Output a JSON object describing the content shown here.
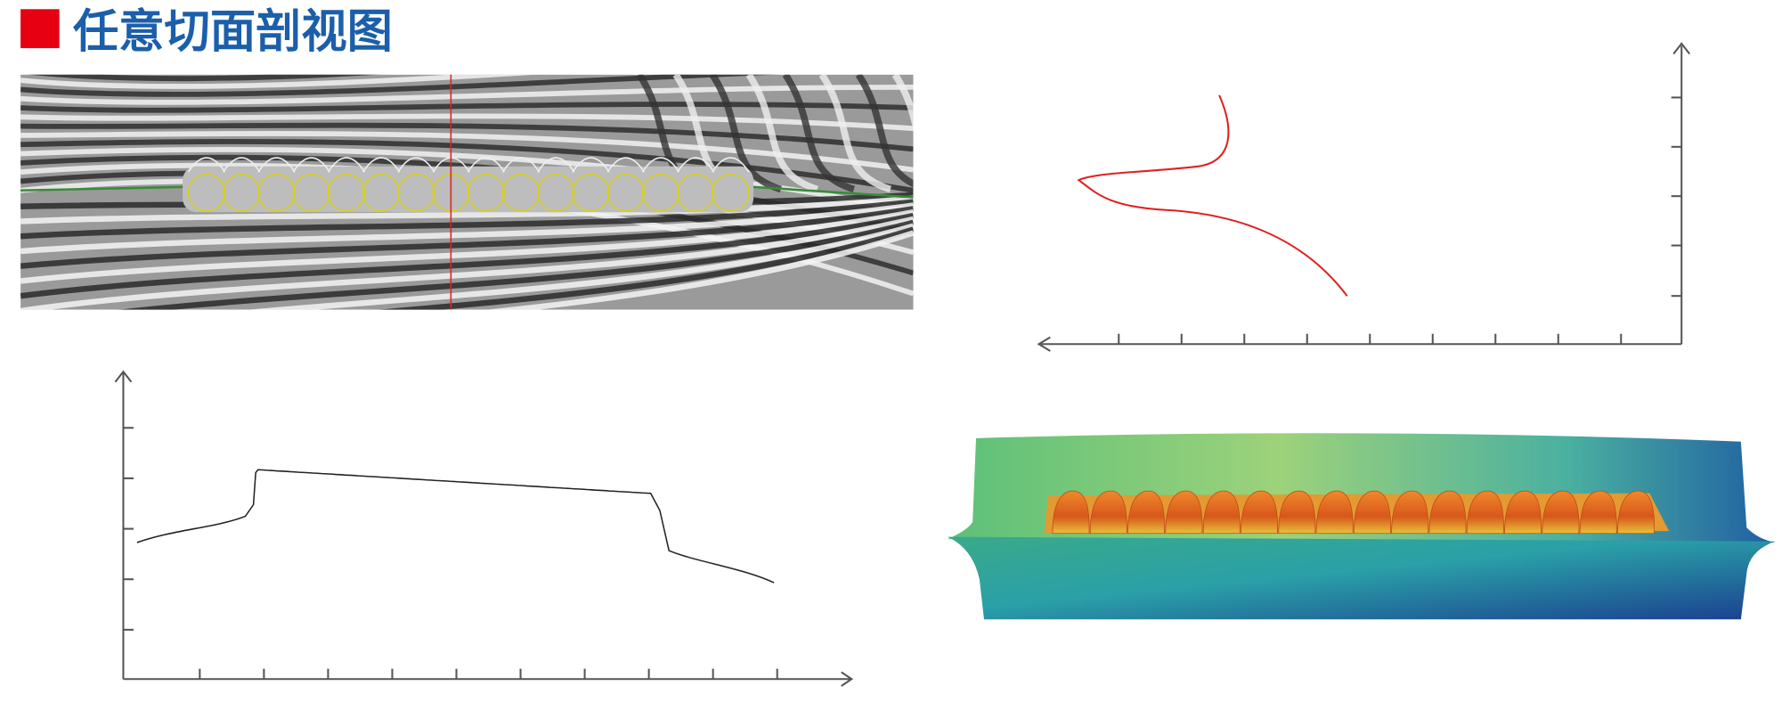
{
  "header": {
    "title": "任意切面剖视图"
  }
}
